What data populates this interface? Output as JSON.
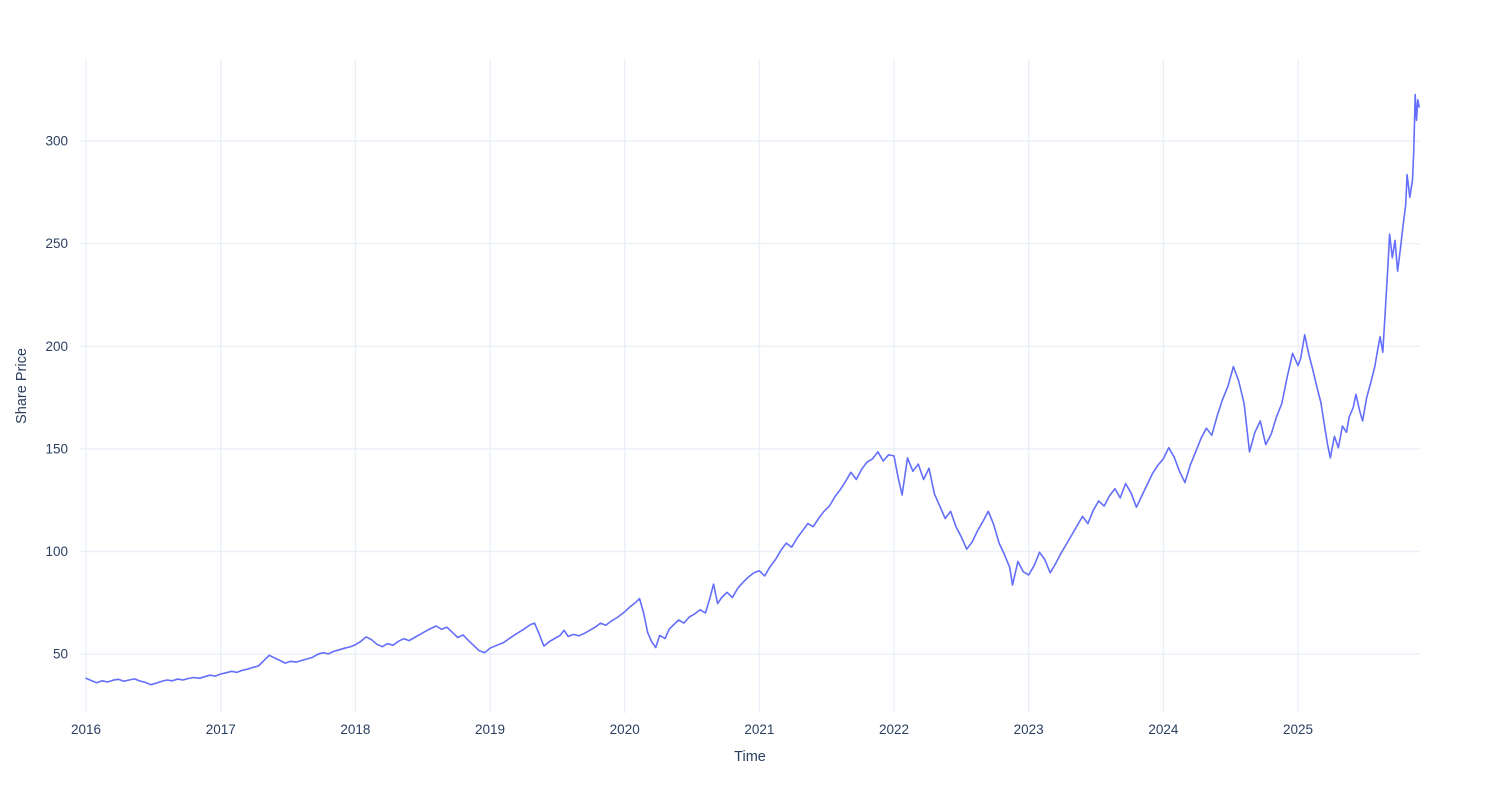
{
  "figure": {
    "background": "#ffffff",
    "plot_background": "#ffffff"
  },
  "style": {
    "line_color": "#636efa",
    "grid_color": "#ebf0f8",
    "text_color": "#2a3f5f",
    "line_width": 1.6
  },
  "chart_data": {
    "type": "line",
    "title": "",
    "xlabel": "Time",
    "ylabel": "Share Price",
    "legend_position": "none",
    "grid": true,
    "x_ticks": [
      2016,
      2017,
      2018,
      2019,
      2020,
      2021,
      2022,
      2023,
      2024,
      2025
    ],
    "y_ticks": [
      50,
      100,
      150,
      200,
      250,
      300
    ],
    "x_range": [
      2015.955,
      2025.906
    ],
    "y_range": [
      21.3,
      339.5
    ],
    "series": [
      {
        "name": "Share Price",
        "color": "#636efa",
        "points": [
          [
            2016.0,
            38.2
          ],
          [
            2016.04,
            37.1
          ],
          [
            2016.08,
            36.0
          ],
          [
            2016.12,
            37.0
          ],
          [
            2016.16,
            36.4
          ],
          [
            2016.2,
            37.3
          ],
          [
            2016.24,
            37.7
          ],
          [
            2016.28,
            36.8
          ],
          [
            2016.32,
            37.4
          ],
          [
            2016.36,
            37.9
          ],
          [
            2016.4,
            36.9
          ],
          [
            2016.44,
            36.2
          ],
          [
            2016.48,
            35.1
          ],
          [
            2016.52,
            35.8
          ],
          [
            2016.56,
            36.7
          ],
          [
            2016.6,
            37.4
          ],
          [
            2016.64,
            37.0
          ],
          [
            2016.68,
            37.8
          ],
          [
            2016.72,
            37.4
          ],
          [
            2016.76,
            38.1
          ],
          [
            2016.8,
            38.6
          ],
          [
            2016.84,
            38.2
          ],
          [
            2016.88,
            39.0
          ],
          [
            2016.92,
            39.7
          ],
          [
            2016.96,
            39.3
          ],
          [
            2017.0,
            40.3
          ],
          [
            2017.04,
            40.9
          ],
          [
            2017.08,
            41.6
          ],
          [
            2017.12,
            41.1
          ],
          [
            2017.16,
            42.1
          ],
          [
            2017.2,
            42.7
          ],
          [
            2017.24,
            43.5
          ],
          [
            2017.28,
            44.2
          ],
          [
            2017.32,
            46.8
          ],
          [
            2017.36,
            49.4
          ],
          [
            2017.4,
            48.1
          ],
          [
            2017.44,
            46.9
          ],
          [
            2017.48,
            45.6
          ],
          [
            2017.52,
            46.5
          ],
          [
            2017.56,
            46.1
          ],
          [
            2017.6,
            46.9
          ],
          [
            2017.64,
            47.6
          ],
          [
            2017.68,
            48.4
          ],
          [
            2017.72,
            49.9
          ],
          [
            2017.76,
            50.7
          ],
          [
            2017.8,
            50.1
          ],
          [
            2017.84,
            51.3
          ],
          [
            2017.88,
            52.1
          ],
          [
            2017.92,
            52.9
          ],
          [
            2017.96,
            53.5
          ],
          [
            2018.0,
            54.6
          ],
          [
            2018.04,
            56.2
          ],
          [
            2018.08,
            58.4
          ],
          [
            2018.12,
            57.0
          ],
          [
            2018.16,
            54.8
          ],
          [
            2018.2,
            53.6
          ],
          [
            2018.24,
            55.1
          ],
          [
            2018.28,
            54.3
          ],
          [
            2018.32,
            56.3
          ],
          [
            2018.36,
            57.5
          ],
          [
            2018.4,
            56.6
          ],
          [
            2018.44,
            58.1
          ],
          [
            2018.48,
            59.6
          ],
          [
            2018.52,
            61.1
          ],
          [
            2018.56,
            62.5
          ],
          [
            2018.6,
            63.7
          ],
          [
            2018.64,
            62.1
          ],
          [
            2018.68,
            63.1
          ],
          [
            2018.72,
            60.6
          ],
          [
            2018.76,
            58.1
          ],
          [
            2018.8,
            59.3
          ],
          [
            2018.84,
            56.6
          ],
          [
            2018.88,
            54.1
          ],
          [
            2018.92,
            51.6
          ],
          [
            2018.96,
            50.7
          ],
          [
            2019.0,
            52.9
          ],
          [
            2019.05,
            54.3
          ],
          [
            2019.1,
            55.6
          ],
          [
            2019.15,
            57.9
          ],
          [
            2019.2,
            60.1
          ],
          [
            2019.25,
            62.1
          ],
          [
            2019.3,
            64.4
          ],
          [
            2019.33,
            65.1
          ],
          [
            2019.36,
            60.6
          ],
          [
            2019.4,
            53.9
          ],
          [
            2019.44,
            56.1
          ],
          [
            2019.48,
            57.6
          ],
          [
            2019.52,
            59.1
          ],
          [
            2019.55,
            61.6
          ],
          [
            2019.58,
            58.6
          ],
          [
            2019.62,
            59.6
          ],
          [
            2019.66,
            58.9
          ],
          [
            2019.7,
            60.1
          ],
          [
            2019.74,
            61.6
          ],
          [
            2019.78,
            63.1
          ],
          [
            2019.82,
            65.1
          ],
          [
            2019.86,
            64.1
          ],
          [
            2019.9,
            66.1
          ],
          [
            2019.95,
            68.1
          ],
          [
            2020.0,
            70.6
          ],
          [
            2020.04,
            73.1
          ],
          [
            2020.08,
            75.1
          ],
          [
            2020.11,
            77.1
          ],
          [
            2020.14,
            70.1
          ],
          [
            2020.17,
            60.6
          ],
          [
            2020.2,
            56.1
          ],
          [
            2020.23,
            53.2
          ],
          [
            2020.26,
            59.1
          ],
          [
            2020.3,
            57.6
          ],
          [
            2020.33,
            62.1
          ],
          [
            2020.36,
            64.1
          ],
          [
            2020.4,
            66.6
          ],
          [
            2020.44,
            65.1
          ],
          [
            2020.48,
            68.1
          ],
          [
            2020.52,
            69.6
          ],
          [
            2020.56,
            71.6
          ],
          [
            2020.6,
            70.1
          ],
          [
            2020.63,
            76.6
          ],
          [
            2020.66,
            84.1
          ],
          [
            2020.69,
            74.6
          ],
          [
            2020.72,
            77.6
          ],
          [
            2020.76,
            80.1
          ],
          [
            2020.8,
            77.6
          ],
          [
            2020.84,
            82.1
          ],
          [
            2020.88,
            85.1
          ],
          [
            2020.92,
            87.6
          ],
          [
            2020.96,
            89.6
          ],
          [
            2021.0,
            90.6
          ],
          [
            2021.04,
            88.1
          ],
          [
            2021.08,
            92.6
          ],
          [
            2021.12,
            96.1
          ],
          [
            2021.16,
            100.6
          ],
          [
            2021.2,
            104.1
          ],
          [
            2021.24,
            102.1
          ],
          [
            2021.28,
            106.6
          ],
          [
            2021.32,
            110.1
          ],
          [
            2021.36,
            113.6
          ],
          [
            2021.4,
            112.1
          ],
          [
            2021.44,
            116.1
          ],
          [
            2021.48,
            119.6
          ],
          [
            2021.52,
            122.1
          ],
          [
            2021.56,
            126.6
          ],
          [
            2021.6,
            130.1
          ],
          [
            2021.64,
            134.1
          ],
          [
            2021.68,
            138.6
          ],
          [
            2021.72,
            135.1
          ],
          [
            2021.76,
            140.1
          ],
          [
            2021.8,
            143.6
          ],
          [
            2021.84,
            145.1
          ],
          [
            2021.88,
            148.6
          ],
          [
            2021.92,
            144.1
          ],
          [
            2021.96,
            147.1
          ],
          [
            2022.0,
            146.6
          ],
          [
            2022.03,
            136.1
          ],
          [
            2022.06,
            127.6
          ],
          [
            2022.1,
            145.6
          ],
          [
            2022.14,
            139.1
          ],
          [
            2022.18,
            142.6
          ],
          [
            2022.22,
            135.1
          ],
          [
            2022.26,
            140.6
          ],
          [
            2022.3,
            128.1
          ],
          [
            2022.34,
            122.1
          ],
          [
            2022.38,
            116.1
          ],
          [
            2022.42,
            119.6
          ],
          [
            2022.46,
            112.1
          ],
          [
            2022.5,
            107.1
          ],
          [
            2022.54,
            101.1
          ],
          [
            2022.58,
            104.6
          ],
          [
            2022.62,
            110.1
          ],
          [
            2022.66,
            114.6
          ],
          [
            2022.7,
            119.6
          ],
          [
            2022.74,
            113.1
          ],
          [
            2022.78,
            104.1
          ],
          [
            2022.82,
            98.6
          ],
          [
            2022.86,
            92.1
          ],
          [
            2022.88,
            83.6
          ],
          [
            2022.92,
            95.1
          ],
          [
            2022.96,
            90.1
          ],
          [
            2023.0,
            88.6
          ],
          [
            2023.04,
            93.1
          ],
          [
            2023.08,
            99.6
          ],
          [
            2023.12,
            96.1
          ],
          [
            2023.16,
            89.6
          ],
          [
            2023.2,
            94.1
          ],
          [
            2023.24,
            99.1
          ],
          [
            2023.28,
            103.6
          ],
          [
            2023.32,
            108.1
          ],
          [
            2023.36,
            112.6
          ],
          [
            2023.4,
            117.1
          ],
          [
            2023.44,
            113.6
          ],
          [
            2023.48,
            120.1
          ],
          [
            2023.52,
            124.6
          ],
          [
            2023.56,
            122.1
          ],
          [
            2023.6,
            127.1
          ],
          [
            2023.64,
            130.6
          ],
          [
            2023.68,
            126.1
          ],
          [
            2023.72,
            133.1
          ],
          [
            2023.76,
            128.6
          ],
          [
            2023.8,
            121.6
          ],
          [
            2023.84,
            127.1
          ],
          [
            2023.88,
            132.6
          ],
          [
            2023.92,
            138.1
          ],
          [
            2023.96,
            142.1
          ],
          [
            2024.0,
            145.1
          ],
          [
            2024.04,
            150.6
          ],
          [
            2024.08,
            146.1
          ],
          [
            2024.12,
            139.1
          ],
          [
            2024.16,
            133.6
          ],
          [
            2024.2,
            142.1
          ],
          [
            2024.24,
            148.6
          ],
          [
            2024.28,
            155.1
          ],
          [
            2024.32,
            160.1
          ],
          [
            2024.36,
            156.6
          ],
          [
            2024.4,
            166.1
          ],
          [
            2024.44,
            174.1
          ],
          [
            2024.48,
            180.6
          ],
          [
            2024.52,
            190.1
          ],
          [
            2024.56,
            183.1
          ],
          [
            2024.6,
            172.1
          ],
          [
            2024.64,
            148.6
          ],
          [
            2024.68,
            158.1
          ],
          [
            2024.72,
            163.6
          ],
          [
            2024.76,
            152.1
          ],
          [
            2024.8,
            157.1
          ],
          [
            2024.84,
            165.6
          ],
          [
            2024.88,
            172.1
          ],
          [
            2024.92,
            185.1
          ],
          [
            2024.96,
            196.6
          ],
          [
            2025.0,
            190.6
          ],
          [
            2025.02,
            194.1
          ],
          [
            2025.05,
            205.6
          ],
          [
            2025.08,
            196.1
          ],
          [
            2025.11,
            188.6
          ],
          [
            2025.14,
            180.1
          ],
          [
            2025.17,
            172.6
          ],
          [
            2025.2,
            160.1
          ],
          [
            2025.22,
            152.1
          ],
          [
            2025.24,
            145.6
          ],
          [
            2025.27,
            156.1
          ],
          [
            2025.3,
            150.6
          ],
          [
            2025.33,
            161.1
          ],
          [
            2025.36,
            158.1
          ],
          [
            2025.38,
            165.6
          ],
          [
            2025.41,
            170.1
          ],
          [
            2025.43,
            176.6
          ],
          [
            2025.46,
            168.1
          ],
          [
            2025.48,
            163.6
          ],
          [
            2025.51,
            175.1
          ],
          [
            2025.54,
            182.1
          ],
          [
            2025.57,
            190.1
          ],
          [
            2025.59,
            197.6
          ],
          [
            2025.61,
            204.6
          ],
          [
            2025.63,
            197.1
          ],
          [
            2025.65,
            219.1
          ],
          [
            2025.67,
            241.6
          ],
          [
            2025.68,
            254.6
          ],
          [
            2025.7,
            243.1
          ],
          [
            2025.72,
            251.6
          ],
          [
            2025.74,
            236.6
          ],
          [
            2025.76,
            247.1
          ],
          [
            2025.78,
            258.6
          ],
          [
            2025.8,
            269.1
          ],
          [
            2025.81,
            283.6
          ],
          [
            2025.83,
            272.6
          ],
          [
            2025.85,
            281.1
          ],
          [
            2025.86,
            295.6
          ],
          [
            2025.87,
            322.6
          ],
          [
            2025.88,
            310.1
          ],
          [
            2025.89,
            320.1
          ],
          [
            2025.9,
            316.6
          ]
        ]
      }
    ]
  }
}
